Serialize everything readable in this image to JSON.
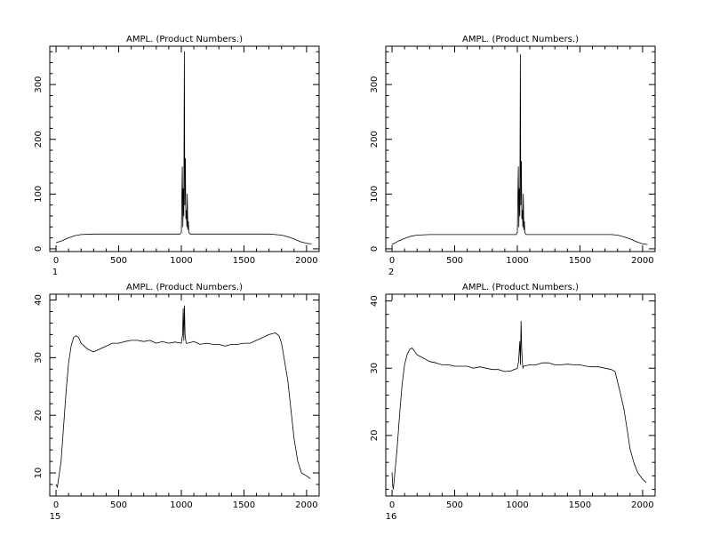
{
  "chart_data": [
    {
      "type": "line",
      "title": "AMPL.  (Product Numbers.)",
      "panel_label": "1",
      "xlim": [
        -50,
        2100
      ],
      "ylim": [
        -5,
        370
      ],
      "xticks": [
        0,
        500,
        1000,
        1500,
        2000
      ],
      "xtick_labels": [
        "0",
        "500",
        "1000",
        "1500",
        "2000"
      ],
      "yticks": [
        0,
        100,
        200,
        300
      ],
      "ytick_labels": [
        "0",
        "100",
        "200",
        "300"
      ],
      "x_minor_step": 100,
      "y_minor_step": 20,
      "series": [
        {
          "x": [
            0,
            50,
            100,
            150,
            200,
            300,
            500,
            700,
            900,
            990,
            1000,
            1008,
            1012,
            1016,
            1020,
            1024,
            1028,
            1032,
            1036,
            1040,
            1044,
            1048,
            1052,
            1056,
            1060,
            1070,
            1100,
            1300,
            1500,
            1650,
            1700,
            1750,
            1800,
            1850,
            1900,
            1950,
            2000,
            2040
          ],
          "y": [
            11,
            15,
            20,
            24,
            26,
            27,
            27,
            27,
            27,
            27,
            30,
            150,
            40,
            110,
            60,
            360,
            80,
            165,
            55,
            70,
            40,
            100,
            35,
            50,
            30,
            27,
            27,
            27,
            27,
            27,
            27,
            26,
            25,
            22,
            18,
            13,
            10,
            9
          ]
        }
      ]
    },
    {
      "type": "line",
      "title": "AMPL.  (Product Numbers.)",
      "panel_label": "2",
      "xlim": [
        -50,
        2100
      ],
      "ylim": [
        -5,
        370
      ],
      "xticks": [
        0,
        500,
        1000,
        1500,
        2000
      ],
      "xtick_labels": [
        "0",
        "500",
        "1000",
        "1500",
        "2000"
      ],
      "yticks": [
        0,
        100,
        200,
        300
      ],
      "ytick_labels": [
        "0",
        "100",
        "200",
        "300"
      ],
      "x_minor_step": 100,
      "y_minor_step": 20,
      "series": [
        {
          "x": [
            0,
            50,
            100,
            150,
            200,
            300,
            500,
            700,
            900,
            990,
            1000,
            1008,
            1012,
            1016,
            1020,
            1024,
            1028,
            1032,
            1036,
            1040,
            1044,
            1048,
            1052,
            1056,
            1060,
            1070,
            1100,
            1300,
            1500,
            1650,
            1700,
            1750,
            1800,
            1850,
            1900,
            1950,
            2000,
            2040
          ],
          "y": [
            8,
            14,
            19,
            23,
            25,
            26,
            26,
            26,
            26,
            26,
            30,
            150,
            40,
            110,
            60,
            355,
            80,
            160,
            55,
            70,
            40,
            100,
            35,
            50,
            30,
            26,
            26,
            26,
            26,
            26,
            26,
            26,
            25,
            22,
            18,
            13,
            9,
            8
          ]
        }
      ]
    },
    {
      "type": "line",
      "title": "AMPL.  (Product Numbers.)",
      "panel_label": "15",
      "xlim": [
        -50,
        2100
      ],
      "ylim": [
        6,
        41
      ],
      "xticks": [
        0,
        500,
        1000,
        1500,
        2000
      ],
      "xtick_labels": [
        "0",
        "500",
        "1000",
        "1500",
        "2000"
      ],
      "yticks": [
        10,
        20,
        30,
        40
      ],
      "ytick_labels": [
        "10",
        "20",
        "30",
        "40"
      ],
      "x_minor_step": 100,
      "y_minor_step": 2,
      "series": [
        {
          "x": [
            0,
            10,
            20,
            40,
            60,
            80,
            100,
            120,
            140,
            160,
            180,
            200,
            250,
            300,
            350,
            400,
            450,
            500,
            550,
            600,
            650,
            700,
            750,
            800,
            850,
            900,
            950,
            1000,
            1010,
            1015,
            1020,
            1025,
            1030,
            1035,
            1040,
            1050,
            1100,
            1150,
            1200,
            1250,
            1300,
            1350,
            1400,
            1450,
            1500,
            1550,
            1600,
            1650,
            1700,
            1750,
            1780,
            1800,
            1820,
            1850,
            1880,
            1900,
            1930,
            1960,
            2000,
            2030
          ],
          "y": [
            8,
            7.5,
            9,
            12,
            18,
            24,
            29,
            32,
            33.5,
            33.8,
            33.5,
            32.5,
            31.5,
            31,
            31.5,
            32,
            32.5,
            32.5,
            32.8,
            33,
            33,
            32.8,
            33,
            32.5,
            32.8,
            32.5,
            32.7,
            32.5,
            34,
            38.5,
            33,
            39,
            34,
            33,
            32.5,
            32.5,
            32.8,
            32.3,
            32.5,
            32.3,
            32.3,
            32,
            32.3,
            32.3,
            32.5,
            32.5,
            33,
            33.5,
            34,
            34.3,
            33.8,
            32.5,
            30,
            26,
            20,
            16,
            12,
            10,
            9.5,
            9
          ]
        }
      ]
    },
    {
      "type": "line",
      "title": "AMPL.  (Product Numbers.)",
      "panel_label": "16",
      "xlim": [
        -50,
        2100
      ],
      "ylim": [
        11,
        41
      ],
      "xticks": [
        0,
        500,
        1000,
        1500,
        2000
      ],
      "xtick_labels": [
        "0",
        "500",
        "1000",
        "1500",
        "2000"
      ],
      "yticks": [
        20,
        30,
        40
      ],
      "ytick_labels": [
        "20",
        "30",
        "40"
      ],
      "x_minor_step": 100,
      "y_minor_step": 2,
      "series": [
        {
          "x": [
            0,
            5,
            10,
            20,
            40,
            60,
            80,
            100,
            120,
            140,
            160,
            180,
            200,
            250,
            300,
            350,
            400,
            450,
            500,
            550,
            600,
            650,
            700,
            750,
            800,
            850,
            900,
            950,
            1000,
            1010,
            1020,
            1025,
            1030,
            1035,
            1040,
            1045,
            1050,
            1100,
            1150,
            1200,
            1250,
            1300,
            1350,
            1400,
            1450,
            1500,
            1550,
            1600,
            1650,
            1700,
            1750,
            1780,
            1800,
            1820,
            1850,
            1880,
            1900,
            1930,
            1960,
            2000,
            2030
          ],
          "y": [
            14.5,
            12.5,
            12,
            14,
            18,
            23,
            27.5,
            30.5,
            32,
            32.8,
            33,
            32.5,
            32,
            31.5,
            31,
            30.8,
            30.5,
            30.5,
            30.3,
            30.3,
            30.3,
            30,
            30.2,
            30,
            29.8,
            29.8,
            29.5,
            29.6,
            30,
            31,
            34,
            30.5,
            37,
            33,
            31,
            30,
            30.3,
            30.5,
            30.5,
            30.8,
            30.8,
            30.5,
            30.5,
            30.6,
            30.5,
            30.5,
            30.3,
            30.2,
            30.2,
            30,
            29.8,
            29.5,
            28,
            26.5,
            24,
            20.5,
            18,
            16,
            14.5,
            13.5,
            13
          ]
        }
      ]
    }
  ]
}
